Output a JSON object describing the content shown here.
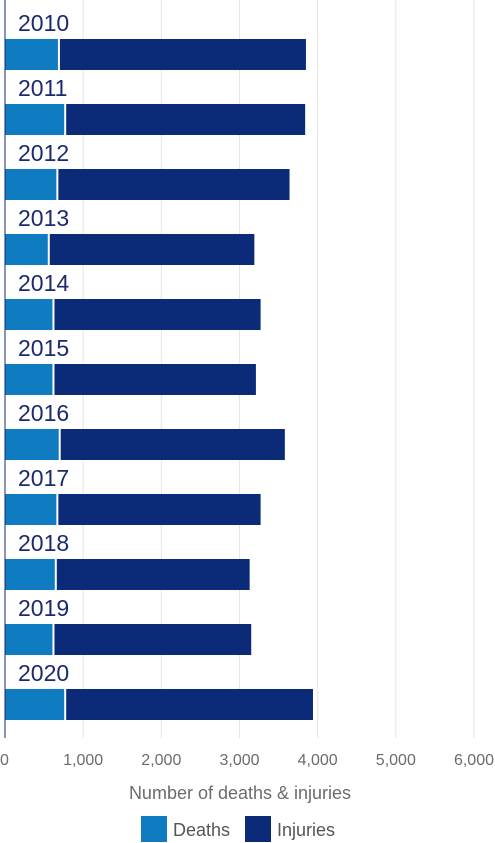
{
  "chart_data": {
    "type": "bar",
    "orientation": "horizontal",
    "stacked": true,
    "categories": [
      "2010",
      "2011",
      "2012",
      "2013",
      "2014",
      "2015",
      "2016",
      "2017",
      "2018",
      "2019",
      "2020"
    ],
    "series": [
      {
        "name": "Deaths",
        "values": [
          690,
          770,
          670,
          560,
          620,
          620,
          700,
          670,
          650,
          620,
          770
        ]
      },
      {
        "name": "Injuries",
        "values": [
          3160,
          3070,
          2970,
          2630,
          2650,
          2590,
          2880,
          2600,
          2480,
          2530,
          3170
        ]
      }
    ],
    "xlabel": "Number of deaths & injuries",
    "xlim": [
      0,
      6000
    ],
    "xticks": [
      "0",
      "1,000",
      "2,000",
      "3,000",
      "4,000",
      "5,000",
      "6,000"
    ],
    "grid": true,
    "legend": "bottom",
    "colors": {
      "Deaths": "#0f7bc1",
      "Injuries": "#0b2a78",
      "grid": "#e6e6e6",
      "axis": "#1a2a6c"
    }
  }
}
